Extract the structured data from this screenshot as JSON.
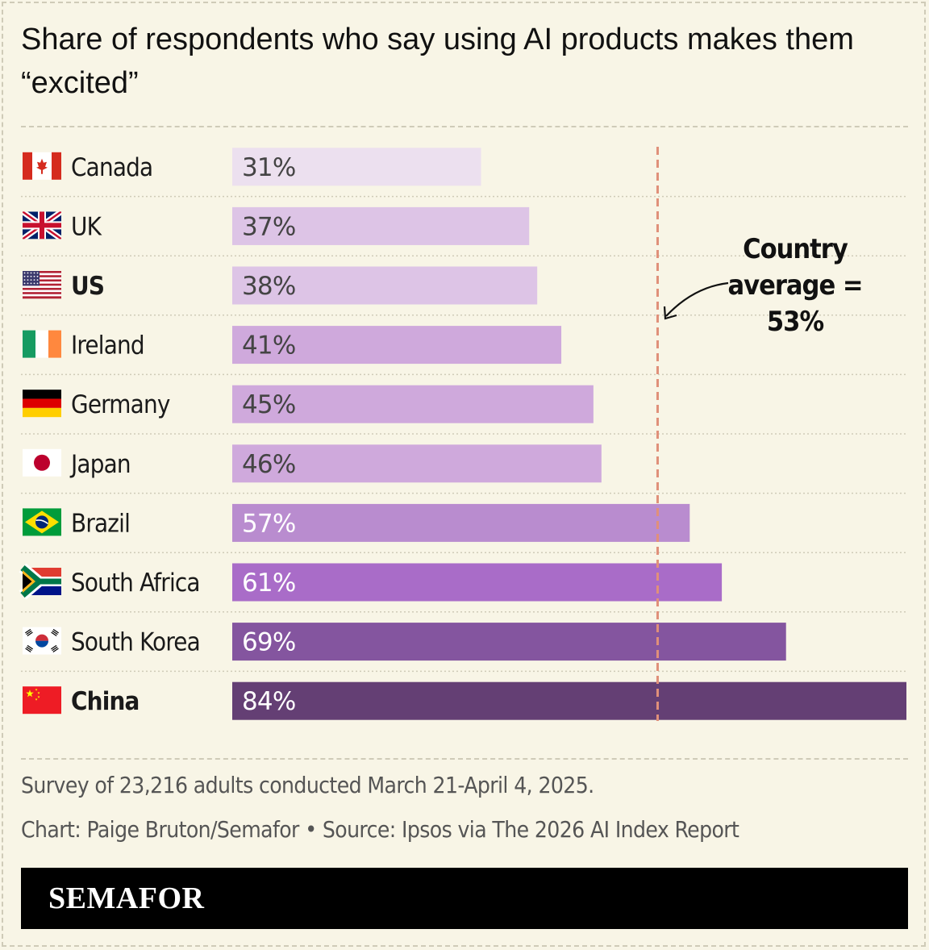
{
  "title": "Share of respondents who say using AI products makes them “excited”",
  "chart_data": {
    "type": "bar",
    "orientation": "horizontal",
    "categories": [
      "Canada",
      "UK",
      "US",
      "Ireland",
      "Germany",
      "Japan",
      "Brazil",
      "South Africa",
      "South Korea",
      "China"
    ],
    "values": [
      31,
      37,
      38,
      41,
      45,
      46,
      57,
      61,
      69,
      84
    ],
    "value_labels": [
      "31%",
      "37%",
      "38%",
      "41%",
      "45%",
      "46%",
      "57%",
      "61%",
      "69%",
      "84%"
    ],
    "bold_categories": [
      "US",
      "China"
    ],
    "bar_colors": [
      "#ece0ef",
      "#ddc4e6",
      "#ddc4e6",
      "#cfa9dc",
      "#cfa9dc",
      "#cfa9dc",
      "#b98ccf",
      "#a96cc8",
      "#84559f",
      "#643f74"
    ],
    "label_colors": [
      "#444444",
      "#444444",
      "#444444",
      "#444444",
      "#444444",
      "#444444",
      "#ffffff",
      "#ffffff",
      "#ffffff",
      "#ffffff"
    ],
    "flags": [
      "canada-flag-icon",
      "uk-flag-icon",
      "us-flag-icon",
      "ireland-flag-icon",
      "germany-flag-icon",
      "japan-flag-icon",
      "brazil-flag-icon",
      "south-africa-flag-icon",
      "south-korea-flag-icon",
      "china-flag-icon"
    ],
    "xlim": [
      0,
      84
    ],
    "reference_line": {
      "value": 53,
      "color": "#e0907a"
    },
    "annotation": [
      "Country",
      "average =",
      "53%"
    ]
  },
  "footnote": "Survey of 23,216 adults conducted March 21-April 4, 2025.",
  "credit": "Chart: Paige Bruton/Semafor • Source: Ipsos via The 2026 AI Index Report",
  "brand": "SEMAFOR",
  "colors": {
    "background": "#f8f5e6",
    "rule": "#cfcbb8",
    "brand_bar": "#000000"
  }
}
